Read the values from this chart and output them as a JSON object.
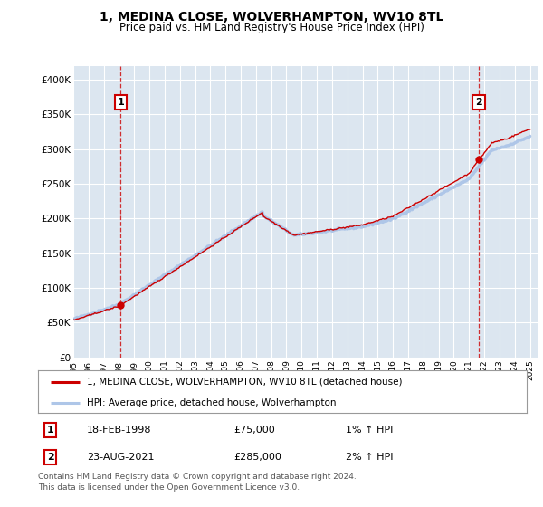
{
  "title": "1, MEDINA CLOSE, WOLVERHAMPTON, WV10 8TL",
  "subtitle": "Price paid vs. HM Land Registry's House Price Index (HPI)",
  "title_fontsize": 10,
  "subtitle_fontsize": 8.5,
  "background_color": "#ffffff",
  "plot_background_color": "#dce6f0",
  "grid_color": "#ffffff",
  "ylim": [
    0,
    420000
  ],
  "yticks": [
    0,
    50000,
    100000,
    150000,
    200000,
    250000,
    300000,
    350000,
    400000
  ],
  "ytick_labels": [
    "£0",
    "£50K",
    "£100K",
    "£150K",
    "£200K",
    "£250K",
    "£300K",
    "£350K",
    "£400K"
  ],
  "hpi_color": "#aec6e8",
  "property_color": "#cc0000",
  "purchase1_year": 1998.12,
  "purchase1_price": 75000,
  "purchase1_label": "1",
  "purchase1_date": "18-FEB-1998",
  "purchase1_hpi_pct": "1%",
  "purchase2_year": 2021.64,
  "purchase2_price": 285000,
  "purchase2_label": "2",
  "purchase2_date": "23-AUG-2021",
  "purchase2_hpi_pct": "2%",
  "legend_line1": "1, MEDINA CLOSE, WOLVERHAMPTON, WV10 8TL (detached house)",
  "legend_line2": "HPI: Average price, detached house, Wolverhampton",
  "footnote": "Contains HM Land Registry data © Crown copyright and database right 2024.\nThis data is licensed under the Open Government Licence v3.0."
}
